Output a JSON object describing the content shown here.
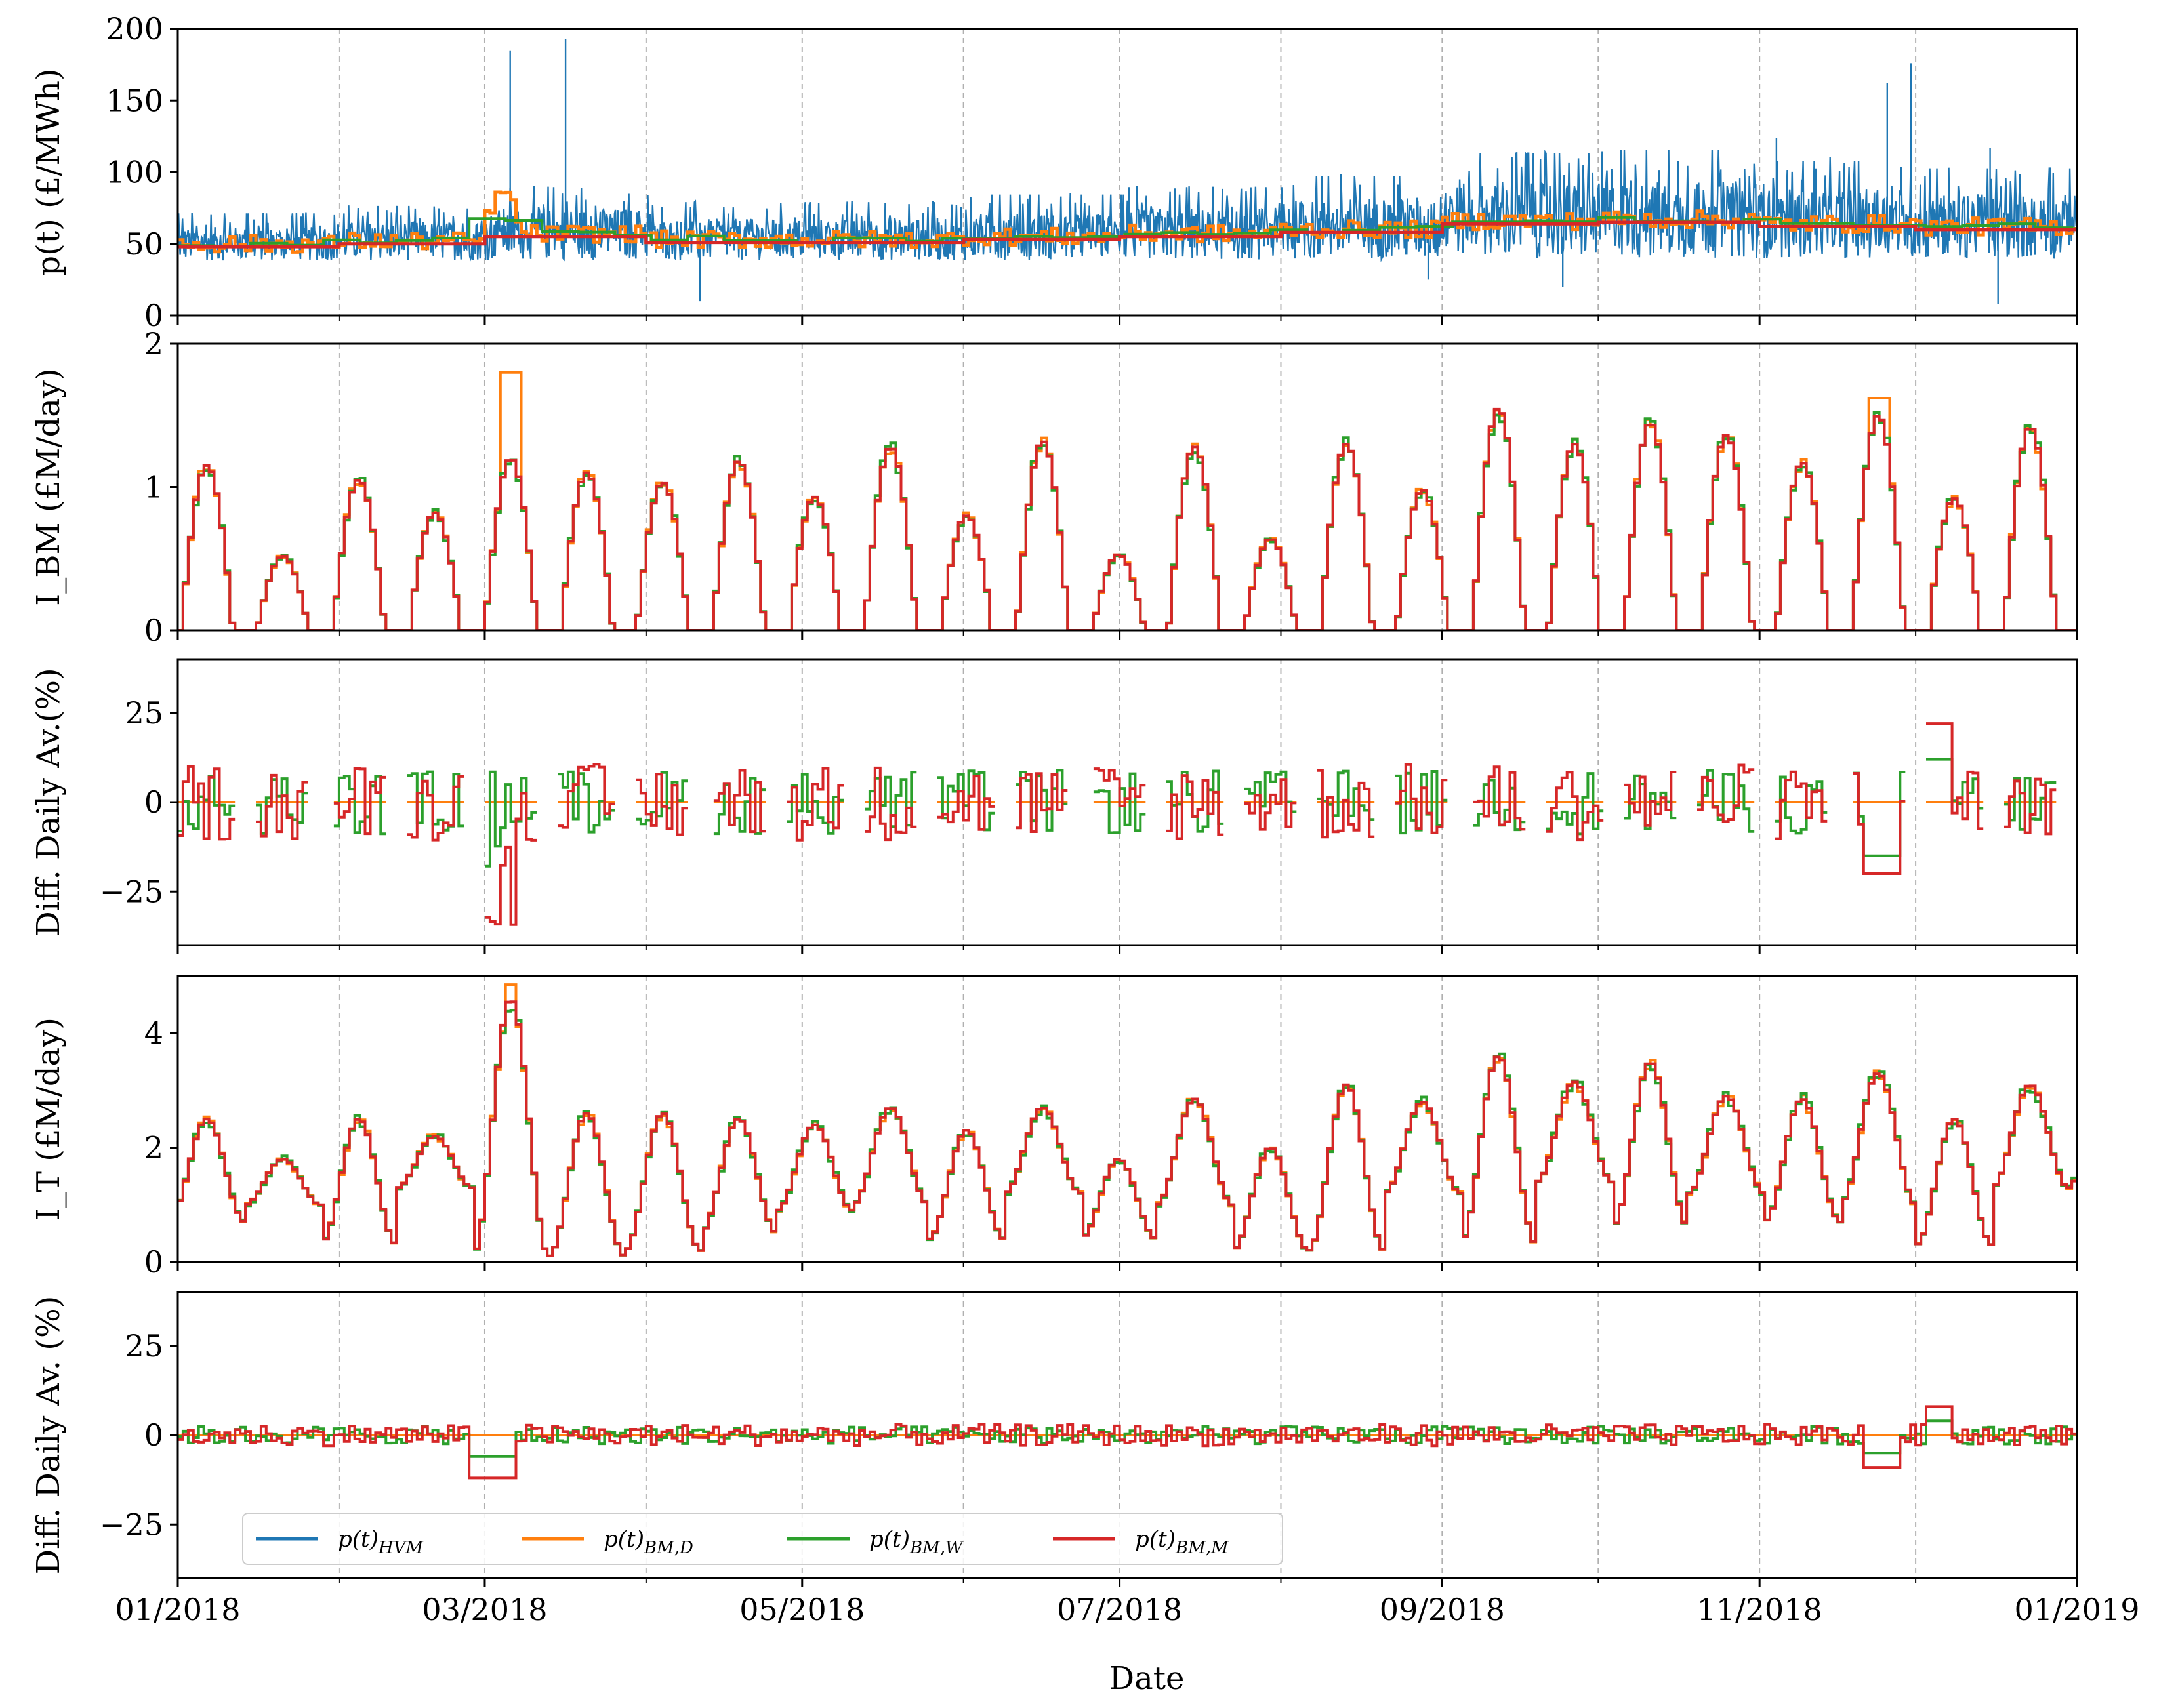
{
  "chart_data": {
    "type": "line",
    "description_axis": "shared time x-axis, 5 stacked panels",
    "xlabel": "Date",
    "x_range": [
      "2018-01-01",
      "2019-01-01"
    ],
    "x_tick_labels": [
      "01/2018",
      "03/2018",
      "05/2018",
      "07/2018",
      "09/2018",
      "11/2018",
      "01/2019"
    ],
    "x_minor_months": [
      "02/2018",
      "04/2018",
      "06/2018",
      "08/2018",
      "10/2018",
      "12/2018"
    ],
    "colors": {
      "HVM": "#1f77b4",
      "BM_D": "#ff7f0e",
      "BM_W": "#2ca02c",
      "BM_M": "#d62728",
      "grid": "#b0b0b0"
    },
    "legend": {
      "position": "lower-left of bottom panel",
      "entries": [
        {
          "key": "HVM",
          "label": "p(t)HVM",
          "base": "p(t)",
          "sub": "HVM"
        },
        {
          "key": "BM_D",
          "label": "p(t)BM,D",
          "base": "p(t)",
          "sub": "BM,D"
        },
        {
          "key": "BM_W",
          "label": "p(t)BM,W",
          "base": "p(t)",
          "sub": "BM,W"
        },
        {
          "key": "BM_M",
          "label": "p(t)BM,M",
          "base": "p(t)",
          "sub": "BM,M"
        }
      ]
    },
    "panels": [
      {
        "id": "price",
        "ylabel": "p(t) (£/MWh)",
        "ylim": [
          0,
          200
        ],
        "yticks": [
          0,
          50,
          100,
          150,
          200
        ],
        "series_note": "Half-hourly HVM price (blue, volatile 25-190) with daily/weekly/monthly block averages ~50-70",
        "monthly_mean": [
          50,
          52,
          57,
          53,
          53,
          55,
          57,
          60,
          66,
          67,
          64,
          62
        ],
        "spikes": [
          [
            2.1,
            185
          ],
          [
            2.45,
            193
          ],
          [
            10.8,
            162
          ],
          [
            10.95,
            176
          ],
          [
            10.1,
            124
          ],
          [
            11.45,
            117
          ],
          [
            3.3,
            10
          ],
          [
            7.9,
            25
          ],
          [
            8.75,
            20
          ],
          [
            11.5,
            8
          ]
        ]
      },
      {
        "id": "ibm",
        "ylabel": "I_BM (£M/day)",
        "ylim": [
          0,
          2
        ],
        "yticks": [
          0,
          1,
          2
        ],
        "cycle_peaks_red": [
          1.15,
          0.52,
          1.05,
          0.82,
          1.2,
          1.1,
          1.03,
          1.18,
          0.93,
          1.28,
          0.8,
          1.32,
          0.53,
          1.28,
          0.64,
          1.3,
          0.98,
          1.55,
          1.3,
          1.45,
          1.36,
          1.17,
          1.5,
          0.92,
          1.42
        ],
        "cycle_peaks_orange_extra": {
          "4": 1.8,
          "22": 1.62
        }
      },
      {
        "id": "diff1",
        "ylabel": "Diff. Daily Av.(%)",
        "ylim": [
          -40,
          40
        ],
        "yticks": [
          -25,
          0,
          25
        ]
      },
      {
        "id": "it",
        "ylabel": "I_T (£M/day)",
        "ylim": [
          0,
          5
        ],
        "yticks": [
          0,
          2,
          4
        ],
        "cycle_peaks": [
          2.5,
          1.8,
          2.5,
          2.2,
          4.6,
          2.6,
          2.6,
          2.5,
          2.4,
          2.7,
          2.3,
          2.7,
          1.8,
          2.85,
          2.0,
          3.1,
          2.8,
          3.6,
          3.15,
          3.5,
          2.9,
          2.85,
          3.3,
          2.5,
          3.1
        ],
        "cycle_troughs": [
          0.7,
          1.0,
          0.3,
          1.3,
          0.1,
          0.1,
          0.2,
          0.5,
          0.9,
          1.0,
          0.4,
          1.2,
          0.4,
          1.0,
          0.2,
          0.2,
          1.2,
          0.3,
          1.4,
          0.6,
          1.2
        ]
      },
      {
        "id": "diff2",
        "ylabel": "Diff. Daily Av. (%)",
        "ylim": [
          -40,
          40
        ],
        "yticks": [
          -25,
          0,
          25
        ]
      }
    ]
  }
}
